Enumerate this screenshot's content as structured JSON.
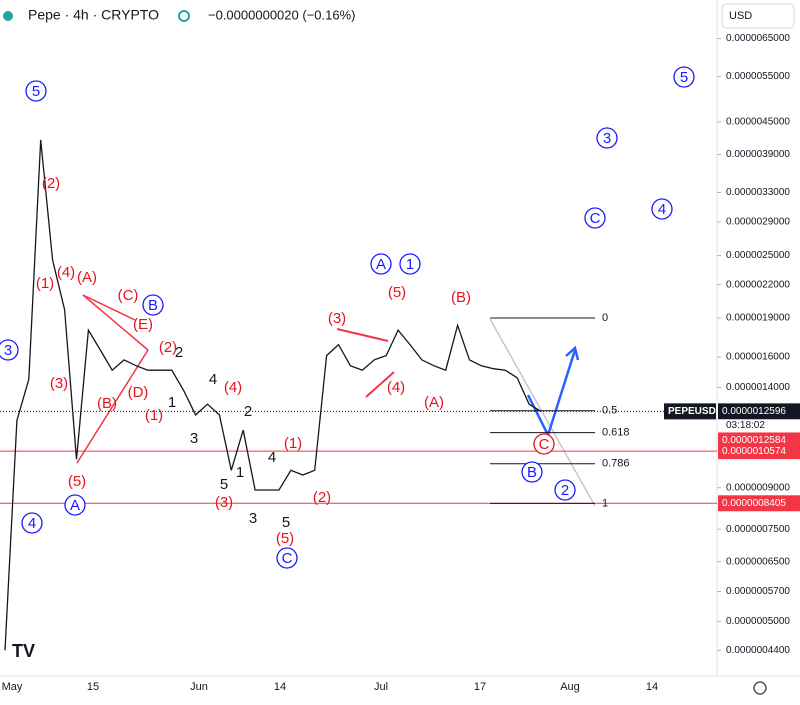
{
  "header": {
    "symbol": "Pepe · 4h · CRYPTO",
    "change": "−0.0000000020 (−0.16%)",
    "currency": "USD"
  },
  "chart_data": {
    "type": "line",
    "log_scale": true,
    "color": "#131722",
    "values": [
      4.4e-07,
      1.21e-06,
      1.45e-06,
      4.16e-06,
      2.45e-06,
      1.97e-06,
      1.02e-06,
      1.8e-06,
      1.65e-06,
      1.51e-06,
      1.58e-06,
      1.54e-06,
      1.51e-06,
      1.51e-06,
      1.51e-06,
      1.38e-06,
      1.24e-06,
      1.3e-06,
      1.24e-06,
      9.72e-07,
      1.16e-06,
      8.91e-07,
      8.91e-07,
      8.91e-07,
      9.72e-07,
      9.52e-07,
      9.72e-07,
      1.61e-06,
      1.69e-06,
      1.54e-06,
      1.51e-06,
      1.58e-06,
      1.61e-06,
      1.8e-06,
      1.69e-06,
      1.58e-06,
      1.54e-06,
      1.51e-06,
      1.84e-06,
      1.58e-06,
      1.54e-06,
      1.52e-06,
      1.51e-06,
      1.46e-06,
      1.3e-06,
      1.2596e-06
    ],
    "ylim": [
      4e-07,
      7.7e-06
    ],
    "yticks": [
      {
        "value": 6.5e-06,
        "label": "0.0000065000"
      },
      {
        "value": 5.5e-06,
        "label": "0.0000055000"
      },
      {
        "value": 4.5e-06,
        "label": "0.0000045000"
      },
      {
        "value": 3.9e-06,
        "label": "0.0000039000"
      },
      {
        "value": 3.3e-06,
        "label": "0.0000033000"
      },
      {
        "value": 2.9e-06,
        "label": "0.0000029000"
      },
      {
        "value": 2.5e-06,
        "label": "0.0000025000"
      },
      {
        "value": 2.2e-06,
        "label": "0.0000022000"
      },
      {
        "value": 1.9e-06,
        "label": "0.0000019000"
      },
      {
        "value": 1.6e-06,
        "label": "0.0000016000"
      },
      {
        "value": 1.4e-06,
        "label": "0.0000014000"
      },
      {
        "value": 9e-07,
        "label": "0.0000009000"
      },
      {
        "value": 7.5e-07,
        "label": "0.0000007500"
      },
      {
        "value": 6.5e-07,
        "label": "0.0000006500"
      },
      {
        "value": 5.7e-07,
        "label": "0.0000005700"
      },
      {
        "value": 5e-07,
        "label": "0.0000005000"
      },
      {
        "value": 4.4e-07,
        "label": "0.0000004400"
      }
    ],
    "x_labels": [
      "May",
      "15",
      "Jun",
      "14",
      "Jul",
      "17",
      "Aug",
      "14"
    ],
    "symbol_tag": "PEPEUSD",
    "countdown": "03:18:02",
    "price_tags": [
      {
        "value": 1.2596e-06,
        "label": "0.0000012596",
        "color": "#131722"
      },
      {
        "value": 1.2584e-06,
        "label": "0.0000012584",
        "color": "#f23645"
      },
      {
        "value": 1.0574e-06,
        "label": "0.0000010574",
        "color": "#f23645"
      },
      {
        "value": 8.405e-07,
        "label": "0.0000008405",
        "color": "#f23645"
      }
    ],
    "fib_high": 1.9e-06,
    "fib_low": 8.4e-07,
    "fib_levels": [
      0,
      0.5,
      0.618,
      0.786,
      1
    ],
    "annotations": [
      {
        "text": "5",
        "style": "blue-circle"
      },
      {
        "text": "3",
        "style": "blue-circle"
      },
      {
        "text": "4",
        "style": "blue-circle"
      },
      {
        "text": "A",
        "style": "blue-circle"
      },
      {
        "text": "B",
        "style": "blue-circle"
      },
      {
        "text": "C",
        "style": "blue-circle"
      },
      {
        "text": "A",
        "style": "blue-circle"
      },
      {
        "text": "1",
        "style": "blue-circle"
      },
      {
        "text": "5",
        "style": "blue-circle"
      },
      {
        "text": "3",
        "style": "blue-circle"
      },
      {
        "text": "4",
        "style": "blue-circle"
      },
      {
        "text": "C",
        "style": "blue-circle"
      },
      {
        "text": "B",
        "style": "blue-circle"
      },
      {
        "text": "2",
        "style": "blue-circle"
      },
      {
        "text": "C",
        "style": "red-circle"
      },
      {
        "text": "(2)",
        "style": "red"
      },
      {
        "text": "(1)",
        "style": "red"
      },
      {
        "text": "(4)",
        "style": "red"
      },
      {
        "text": "(A)",
        "style": "red"
      },
      {
        "text": "(C)",
        "style": "red"
      },
      {
        "text": "(E)",
        "style": "red"
      },
      {
        "text": "(B)",
        "style": "red"
      },
      {
        "text": "(D)",
        "style": "red"
      },
      {
        "text": "(1)",
        "style": "red"
      },
      {
        "text": "(2)",
        "style": "red"
      },
      {
        "text": "(3)",
        "style": "red"
      },
      {
        "text": "(5)",
        "style": "red"
      },
      {
        "text": "(4)",
        "style": "red"
      },
      {
        "text": "(3)",
        "style": "red"
      },
      {
        "text": "(1)",
        "style": "red"
      },
      {
        "text": "(2)",
        "style": "red"
      },
      {
        "text": "(5)",
        "style": "red"
      },
      {
        "text": "(3)",
        "style": "red"
      },
      {
        "text": "(5)",
        "style": "red"
      },
      {
        "text": "(B)",
        "style": "red"
      },
      {
        "text": "(4)",
        "style": "red"
      },
      {
        "text": "(A)",
        "style": "red"
      },
      {
        "text": "2",
        "style": "black"
      },
      {
        "text": "4",
        "style": "black"
      },
      {
        "text": "1",
        "style": "black"
      },
      {
        "text": "3",
        "style": "black"
      },
      {
        "text": "2",
        "style": "black"
      },
      {
        "text": "1",
        "style": "black"
      },
      {
        "text": "5",
        "style": "black"
      },
      {
        "text": "3",
        "style": "black"
      },
      {
        "text": "4",
        "style": "black"
      },
      {
        "text": "5",
        "style": "black"
      }
    ]
  }
}
